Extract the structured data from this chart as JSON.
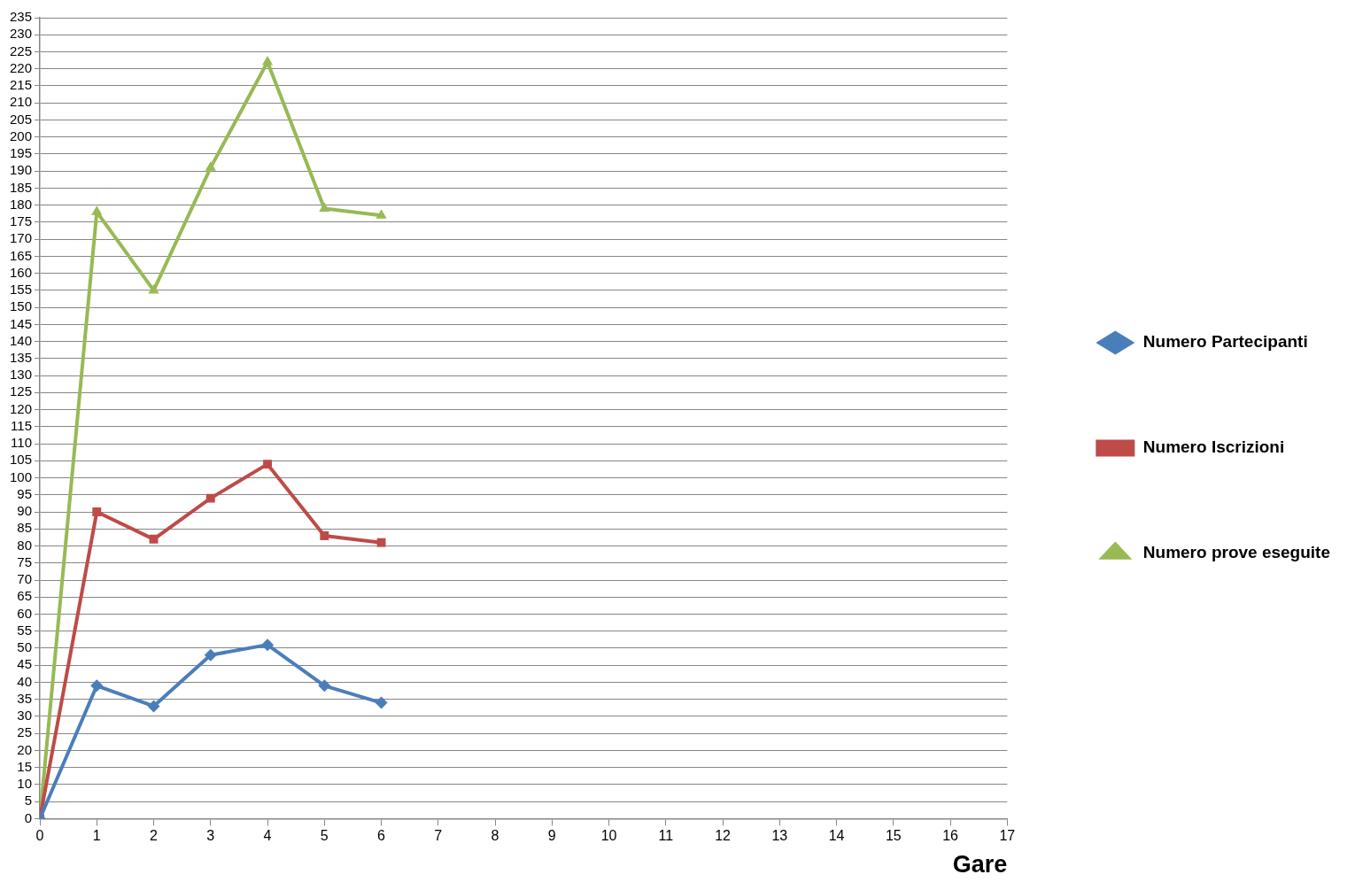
{
  "chart_data": {
    "type": "line",
    "xlabel": "Gare",
    "x": [
      0,
      1,
      2,
      3,
      4,
      5,
      6
    ],
    "series": [
      {
        "name": "Numero Partecipanti",
        "color": "#4a7ebb",
        "marker": "diamond",
        "values": [
          0,
          39,
          33,
          48,
          51,
          39,
          34
        ]
      },
      {
        "name": "Numero Iscrizioni",
        "color": "#be4b48",
        "marker": "square",
        "values": [
          0,
          90,
          82,
          94,
          104,
          83,
          81
        ]
      },
      {
        "name": "Numero prove eseguite",
        "color": "#98b954",
        "marker": "triangle",
        "values": [
          0,
          178,
          155,
          191,
          222,
          179,
          177
        ]
      }
    ],
    "xlim": [
      0,
      17
    ],
    "xticks": [
      0,
      1,
      2,
      3,
      4,
      5,
      6,
      7,
      8,
      9,
      10,
      11,
      12,
      13,
      14,
      15,
      16,
      17
    ],
    "ylim": [
      0,
      235
    ],
    "yticks": [
      0,
      5,
      10,
      15,
      20,
      25,
      30,
      35,
      40,
      45,
      50,
      55,
      60,
      65,
      70,
      75,
      80,
      85,
      90,
      95,
      100,
      105,
      110,
      115,
      120,
      125,
      130,
      135,
      140,
      145,
      150,
      155,
      160,
      165,
      170,
      175,
      180,
      185,
      190,
      195,
      200,
      205,
      210,
      215,
      220,
      225,
      230,
      235
    ],
    "grid": "y",
    "legend": "right",
    "line_style": "solid"
  }
}
